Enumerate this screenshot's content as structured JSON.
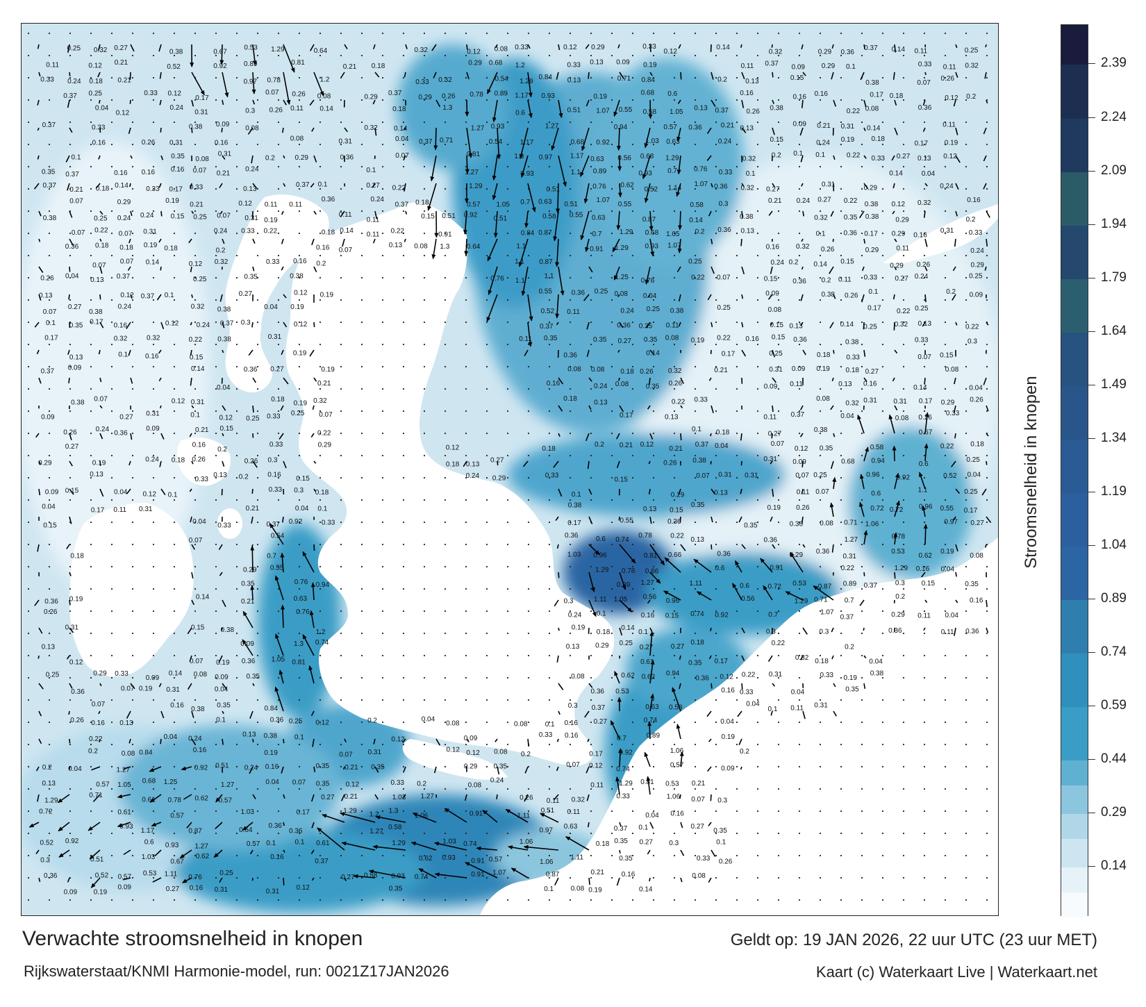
{
  "title": "Verwachte stroomsnelheid in knopen",
  "subtitle": "Rijkswaterstaat/KNMI Harmonie-model, run: 0021Z17JAN2026",
  "valid_time": "Geldt op: 19 JAN 2026, 22 uur UTC (23 uur MET)",
  "credit": "Kaart (c) Waterkaart Live | Waterkaart.net",
  "colorbar": {
    "title": "Stroomsnelheid in knopen",
    "tick_labels": [
      "2.39",
      "2.24",
      "2.09",
      "1.94",
      "1.79",
      "1.64",
      "1.49",
      "1.34",
      "1.19",
      "1.04",
      "0.89",
      "0.74",
      "0.59",
      "0.44",
      "0.29",
      "0.14"
    ],
    "colors": [
      "#f7fbfd",
      "#e1eff6",
      "#c4e0ed",
      "#a0cfe2",
      "#79bdd7",
      "#3f9fc7",
      "#2e94bf",
      "#2f87b4",
      "#2f78a9",
      "#2c6aa3",
      "#2b5f9e",
      "#2a5a91",
      "#295486",
      "#27507a",
      "#2d6668",
      "#24466b",
      "#1c2f55",
      "#1a1f40"
    ],
    "bands": [
      {
        "from": 0.0,
        "to": 0.07,
        "color": "#f7fbfd"
      },
      {
        "from": 0.07,
        "to": 0.14,
        "color": "#e6f2f8"
      },
      {
        "from": 0.14,
        "to": 0.22,
        "color": "#cde5f0"
      },
      {
        "from": 0.22,
        "to": 0.29,
        "color": "#b0d7e8"
      },
      {
        "from": 0.29,
        "to": 0.37,
        "color": "#8cc6de"
      },
      {
        "from": 0.37,
        "to": 0.44,
        "color": "#5fb1d2"
      },
      {
        "from": 0.44,
        "to": 0.59,
        "color": "#3a9dc6"
      },
      {
        "from": 0.59,
        "to": 0.74,
        "color": "#2f8fbd"
      },
      {
        "from": 0.74,
        "to": 0.89,
        "color": "#2f7fae"
      },
      {
        "from": 0.89,
        "to": 1.04,
        "color": "#2c65a3"
      },
      {
        "from": 1.04,
        "to": 1.19,
        "color": "#2c5f9d"
      },
      {
        "from": 1.19,
        "to": 1.34,
        "color": "#2a5b95"
      },
      {
        "from": 1.34,
        "to": 1.49,
        "color": "#29568a"
      },
      {
        "from": 1.49,
        "to": 1.64,
        "color": "#28527f"
      },
      {
        "from": 1.64,
        "to": 1.79,
        "color": "#2b5f6f"
      },
      {
        "from": 1.79,
        "to": 1.94,
        "color": "#24486e"
      },
      {
        "from": 1.94,
        "to": 2.09,
        "color": "#2c5b68"
      },
      {
        "from": 2.09,
        "to": 2.24,
        "color": "#1f3a5e"
      },
      {
        "from": 2.24,
        "to": 2.39,
        "color": "#1c2f52"
      },
      {
        "from": 2.39,
        "to": 2.5,
        "color": "#191c3d"
      }
    ]
  },
  "map_labels": [
    "0.19",
    "0.18",
    "0.17",
    "0.16",
    "0.08",
    "0.07",
    "0.09",
    "0.1",
    "0.11",
    "0.13",
    "0.12",
    "0.14",
    "0.15",
    "0.04",
    "0.2",
    "0.22",
    "0.21",
    "0.24",
    "0.25",
    "0.26",
    "0.27",
    "0.29",
    "0.3",
    "0.31",
    "0.32",
    "0.33",
    "0.35",
    "0.36",
    "0.37",
    "0.38",
    "0.39",
    "0.41",
    "0.42",
    "0.43",
    "0.44",
    "0.45",
    "0.46",
    "0.47",
    "0.48",
    "0.49",
    "0.51",
    "0.52",
    "0.53",
    "0.54",
    "0.55",
    "0.56",
    "0.57",
    "0.58",
    "0.6",
    "0.61",
    "0.62",
    "0.63",
    "0.64",
    "0.66",
    "0.67",
    "0.68",
    "0.7",
    "0.71",
    "0.72",
    "0.74",
    "0.76",
    "0.78",
    "0.81",
    "0.84",
    "0.87",
    "0.89",
    "0.91",
    "0.92",
    "0.93",
    "0.94",
    "0.96",
    "0.97",
    "1.03",
    "1.05",
    "1.06",
    "1.07",
    "1.1",
    "1.11",
    "1.14",
    "1.17",
    "1.2",
    "1.25",
    "1.27",
    "1.29",
    "1.3",
    "1.38",
    "0.01",
    "0.02",
    "0.03",
    "0.05",
    "0.06",
    "0",
    "0.23",
    "0.28",
    "0.34",
    "0.4",
    "0.5",
    "0.59",
    "0.69"
  ]
}
